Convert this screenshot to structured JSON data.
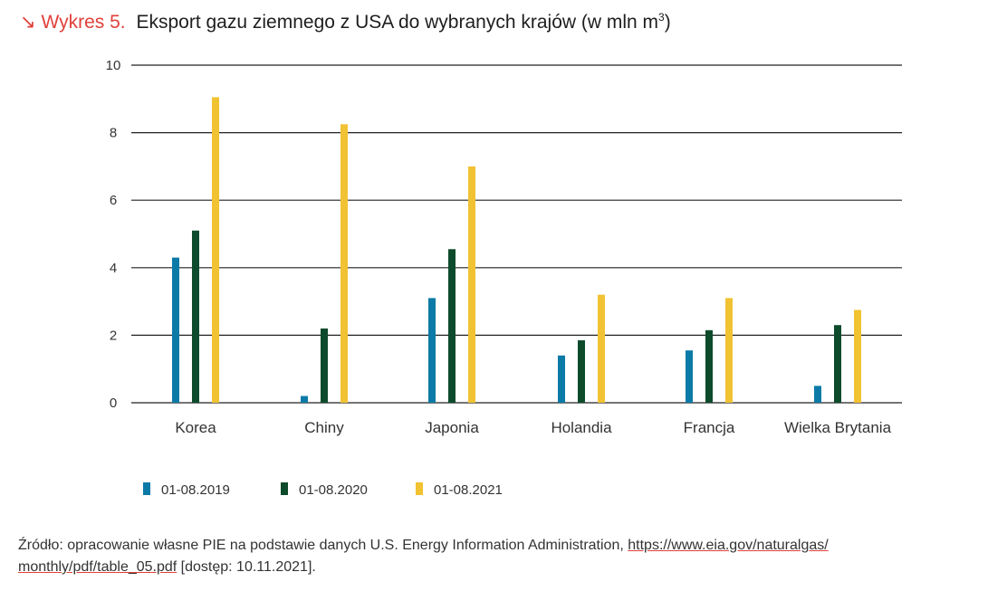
{
  "header": {
    "arrow": "↘",
    "label": "Wykres 5.",
    "title": "Eksport gazu ziemnego z USA do wybranych krajów (w mln m",
    "superscript": "3",
    "title_end": ")"
  },
  "colors": {
    "s2019": "#0b7aa6",
    "s2020": "#0e4b2c",
    "s2021": "#f1c232",
    "grid": "#222222",
    "accent": "#e0403a"
  },
  "chart_data": {
    "type": "bar",
    "title": "Eksport gazu ziemnego z USA do wybranych krajów (w mln m3)",
    "categories": [
      "Korea",
      "Chiny",
      "Japonia",
      "Holandia",
      "Francja",
      "Wielka Brytania"
    ],
    "series": [
      {
        "name": "01-08.2019",
        "values": [
          4.3,
          0.2,
          3.1,
          1.4,
          1.55,
          0.5
        ]
      },
      {
        "name": "01-08.2020",
        "values": [
          5.1,
          2.2,
          4.55,
          1.85,
          2.15,
          2.3
        ]
      },
      {
        "name": "01-08.2021",
        "values": [
          9.05,
          8.25,
          7.0,
          3.2,
          3.1,
          2.75
        ]
      }
    ],
    "yticks": [
      "0",
      "2",
      "4",
      "6",
      "8",
      "10"
    ],
    "ylim": [
      0,
      10
    ],
    "xlabel": "",
    "ylabel": "",
    "grid": true,
    "legend": "bottom-left"
  },
  "source": {
    "prefix": "Źródło: opracowanie własne PIE na podstawie danych U.S. Energy Information Administration, ",
    "link1": "https://www.eia.gov/naturalgas/",
    "link2": "monthly/pdf/table_05.pdf",
    "suffix": " [dostęp: 10.11.2021]."
  }
}
